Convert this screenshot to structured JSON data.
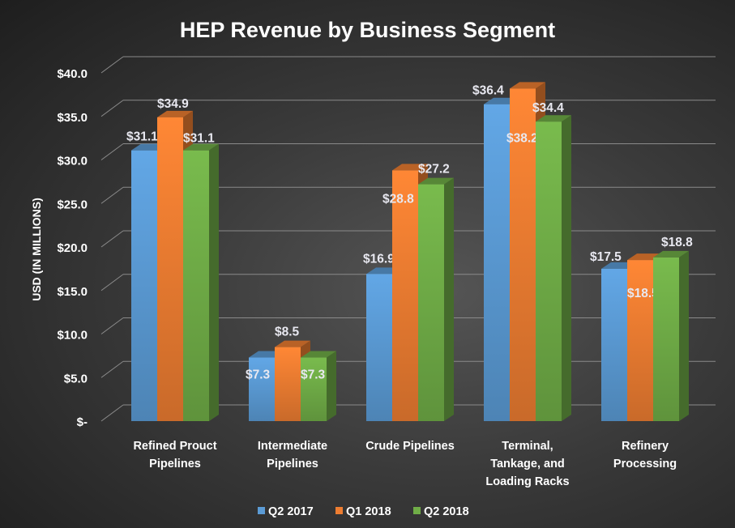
{
  "chart_data": {
    "type": "bar",
    "title": "HEP Revenue by Business Segment",
    "ylabel": "USD (IN MILLIONS)",
    "xlabel": "",
    "ylim": [
      0,
      40
    ],
    "yticks": [
      "$-",
      "$5.0",
      "$10.0",
      "$15.0",
      "$20.0",
      "$25.0",
      "$30.0",
      "$35.0",
      "$40.0"
    ],
    "categories": [
      [
        "Refined Prouct",
        "Pipelines"
      ],
      [
        "Intermediate",
        "Pipelines"
      ],
      [
        "Crude Pipelines"
      ],
      [
        "Terminal,",
        "Tankage, and",
        "Loading Racks"
      ],
      [
        "Refinery",
        "Processing"
      ]
    ],
    "series": [
      {
        "name": "Q2 2017",
        "color": "#5b9bd5",
        "values": [
          31.1,
          7.3,
          16.9,
          36.4,
          17.5
        ],
        "labels": [
          "$31.1",
          "$7.3",
          "$16.9",
          "$36.4",
          "$17.5"
        ]
      },
      {
        "name": "Q1 2018",
        "color": "#ed7d31",
        "values": [
          34.9,
          8.5,
          28.8,
          38.2,
          18.5
        ],
        "labels": [
          "$34.9",
          "$8.5",
          "$28.8",
          "$38.2",
          "$18.5"
        ]
      },
      {
        "name": "Q2 2018",
        "color": "#70ad47",
        "values": [
          31.1,
          7.3,
          27.2,
          34.4,
          18.8
        ],
        "labels": [
          "$31.1",
          "$7.3",
          "$27.2",
          "$34.4",
          "$18.8"
        ]
      }
    ],
    "grid": true,
    "legend": "bottom",
    "style": "3d-clustered-column"
  }
}
